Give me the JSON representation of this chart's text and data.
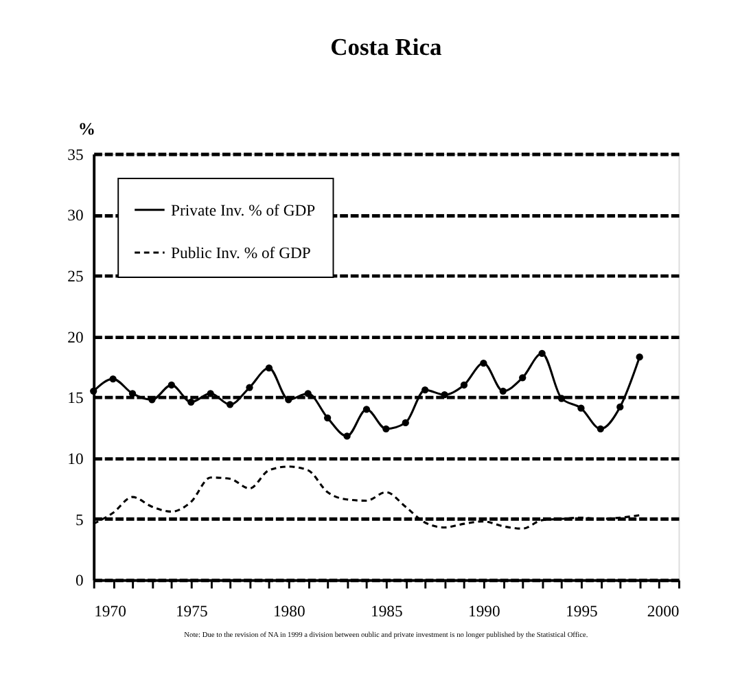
{
  "chart_data": {
    "type": "line",
    "title": "Costa Rica",
    "ylabel": "%",
    "x": [
      1970,
      1971,
      1972,
      1973,
      1974,
      1975,
      1976,
      1977,
      1978,
      1979,
      1980,
      1981,
      1982,
      1983,
      1984,
      1985,
      1986,
      1987,
      1988,
      1989,
      1990,
      1991,
      1992,
      1993,
      1994,
      1995,
      1996,
      1997,
      1998
    ],
    "series": [
      {
        "name": "Private Inv. % of GDP",
        "color": "#000000",
        "line_style": "solid",
        "marker": "circle",
        "values": [
          15.5,
          16.5,
          15.3,
          14.8,
          16.0,
          14.6,
          15.3,
          14.4,
          15.8,
          17.4,
          14.8,
          15.3,
          13.3,
          11.8,
          14.0,
          12.4,
          12.9,
          15.6,
          15.2,
          16.0,
          17.8,
          15.5,
          16.6,
          18.6,
          14.9,
          14.1,
          12.4,
          14.2,
          18.3
        ]
      },
      {
        "name": "Public Inv. % of GDP",
        "color": "#000000",
        "line_style": "dashed",
        "marker": "none",
        "values": [
          4.6,
          5.5,
          6.8,
          6.0,
          5.6,
          6.4,
          8.4,
          8.3,
          7.5,
          9.0,
          9.3,
          9.0,
          7.2,
          6.6,
          6.5,
          7.2,
          6.0,
          4.7,
          4.3,
          4.6,
          4.8,
          4.4,
          4.2,
          4.9,
          5.0,
          5.1,
          5.0,
          5.1,
          5.3
        ]
      }
    ],
    "xlim": [
      1970,
      2000
    ],
    "xticks": [
      1970,
      {
        "value": 1971,
        "label": null
      },
      {
        "value": 1972,
        "label": null
      },
      {
        "value": 1973,
        "label": null
      },
      {
        "value": 1974,
        "label": null
      },
      1975,
      {
        "value": 1976,
        "label": null
      },
      {
        "value": 1977,
        "label": null
      },
      {
        "value": 1978,
        "label": null
      },
      {
        "value": 1979,
        "label": null
      },
      1980,
      {
        "value": 1981,
        "label": null
      },
      {
        "value": 1982,
        "label": null
      },
      {
        "value": 1983,
        "label": null
      },
      {
        "value": 1984,
        "label": null
      },
      1985,
      {
        "value": 1986,
        "label": null
      },
      {
        "value": 1987,
        "label": null
      },
      {
        "value": 1988,
        "label": null
      },
      {
        "value": 1989,
        "label": null
      },
      1990,
      {
        "value": 1991,
        "label": null
      },
      {
        "value": 1992,
        "label": null
      },
      {
        "value": 1993,
        "label": null
      },
      {
        "value": 1994,
        "label": null
      },
      1995,
      {
        "value": 1996,
        "label": null
      },
      {
        "value": 1997,
        "label": null
      },
      {
        "value": 1998,
        "label": null
      },
      {
        "value": 1999,
        "label": null
      },
      2000
    ],
    "ylim": [
      0,
      35
    ],
    "yticks": [
      0,
      5,
      10,
      15,
      20,
      25,
      30,
      35
    ],
    "grid": "y",
    "legend": "top left",
    "annotations": [
      "Note: Due to the revision of NA in 1999 a division between oublic and private investment is no longer published by the Statistical Office."
    ]
  }
}
